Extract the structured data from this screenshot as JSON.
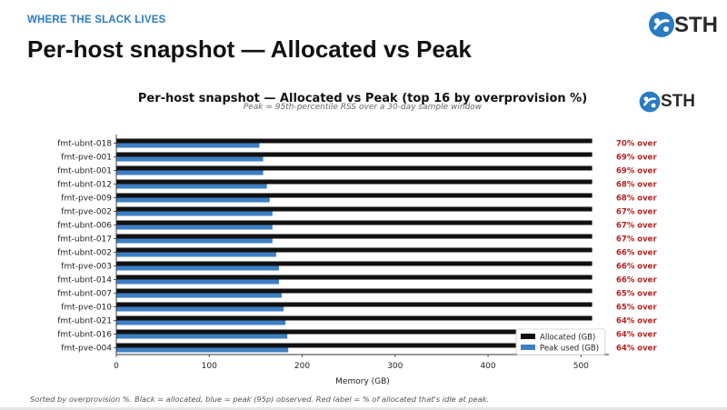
{
  "header": {
    "tagline": "WHERE THE SLACK LIVES",
    "title": "Per-host snapshot — Allocated vs Peak",
    "logo_text": "STH"
  },
  "colors": {
    "brand_blue": "#2a7bc4",
    "allocated": "#111111",
    "peak": "#3d7fc4",
    "over_label": "#b22222"
  },
  "chart_data": {
    "type": "bar",
    "orientation": "horizontal",
    "title": "Per-host snapshot — Allocated vs Peak (top 16 by overprovision %)",
    "subtitle": "Peak = 95th-percentile RSS over a 30-day sample window",
    "xlabel": "Memory (GB)",
    "ylabel": "",
    "xlim": [
      0,
      530
    ],
    "xticks": [
      0,
      100,
      200,
      300,
      400,
      500
    ],
    "grid": false,
    "legend_position": "bottom-right",
    "categories": [
      "fmt-ubnt-018",
      "fmt-pve-001",
      "fmt-ubnt-001",
      "fmt-ubnt-012",
      "fmt-pve-009",
      "fmt-pve-002",
      "fmt-ubnt-006",
      "fmt-ubnt-017",
      "fmt-ubnt-002",
      "fmt-pve-003",
      "fmt-ubnt-014",
      "fmt-ubnt-007",
      "fmt-pve-010",
      "fmt-ubnt-021",
      "fmt-ubnt-016",
      "fmt-pve-004"
    ],
    "series": [
      {
        "name": "Allocated (GB)",
        "values": [
          512,
          512,
          512,
          512,
          512,
          512,
          512,
          512,
          512,
          512,
          512,
          512,
          512,
          512,
          512,
          512
        ]
      },
      {
        "name": "Peak used (GB)",
        "values": [
          154,
          158,
          158,
          162,
          165,
          168,
          168,
          168,
          172,
          175,
          175,
          178,
          180,
          182,
          184,
          185
        ]
      }
    ],
    "annotations": [
      "70% over",
      "69% over",
      "69% over",
      "68% over",
      "68% over",
      "67% over",
      "67% over",
      "67% over",
      "66% over",
      "66% over",
      "66% over",
      "65% over",
      "65% over",
      "64% over",
      "64% over",
      "64% over"
    ]
  },
  "footer": "Sorted by overprovision %. Black = allocated, blue = peak (95p) observed. Red label = % of allocated that's idle at peak."
}
